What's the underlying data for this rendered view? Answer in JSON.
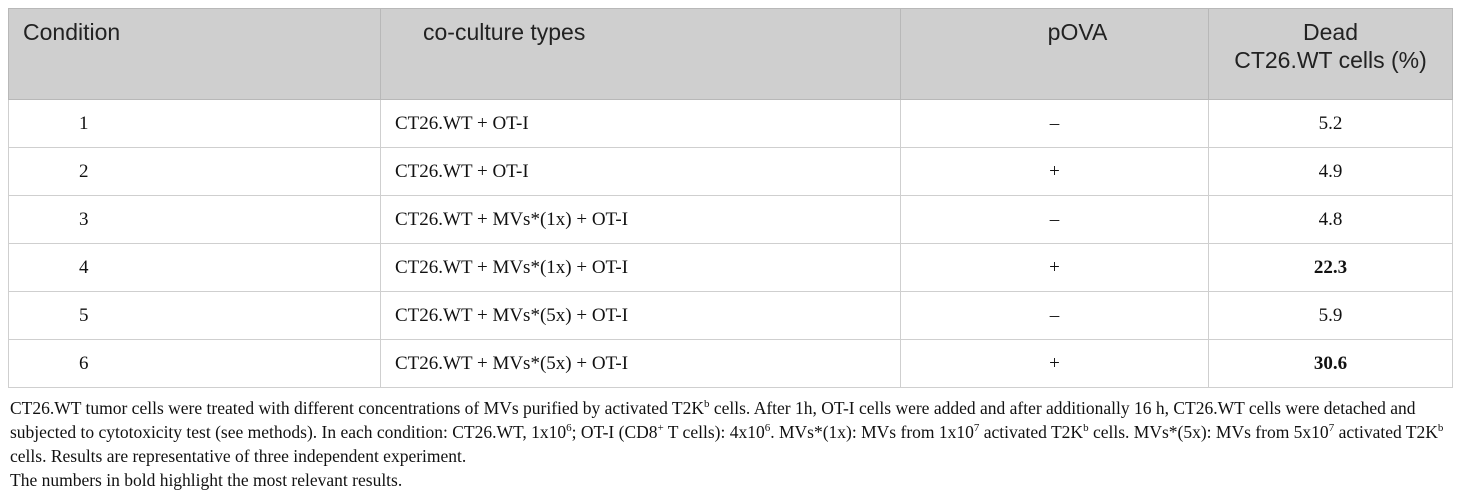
{
  "table": {
    "headers": {
      "condition": "Condition",
      "coculture": "co-culture types",
      "povaa": "pOVA",
      "dead_line1": "Dead",
      "dead_line2": "CT26.WT cells (%)"
    },
    "rows": [
      {
        "condition": "1",
        "type": "CT26.WT + OT-I",
        "pova": "–",
        "dead": "5.2",
        "bold": false
      },
      {
        "condition": "2",
        "type": "CT26.WT + OT-I",
        "pova": "+",
        "dead": "4.9",
        "bold": false
      },
      {
        "condition": "3",
        "type": "CT26.WT + MVs*(1x) + OT-I",
        "pova": "–",
        "dead": "4.8",
        "bold": false
      },
      {
        "condition": "4",
        "type": "CT26.WT + MVs*(1x) + OT-I",
        "pova": "+",
        "dead": "22.3",
        "bold": true
      },
      {
        "condition": "5",
        "type": "CT26.WT + MVs*(5x) + OT-I",
        "pova": "–",
        "dead": "5.9",
        "bold": false
      },
      {
        "condition": "6",
        "type": "CT26.WT + MVs*(5x) + OT-I",
        "pova": "+",
        "dead": "30.6",
        "bold": true
      }
    ]
  },
  "footnote": {
    "p1": [
      "CT26.WT tumor cells were treated with different concentrations of MVs purified by activated T2K",
      "b",
      " cells. After 1h, OT-I cells were added and after additionally 16 h, CT26.WT cells were detached and subjected to cytotoxicity test (see methods). In each condition: CT26.WT, 1x10",
      "6",
      "; OT-I (CD8",
      "+",
      " T cells): 4x10",
      "6",
      ". MVs*(1x): MVs from 1x10",
      "7",
      " activated T2K",
      "b",
      " cells. MVs*(5x): MVs from 5x10",
      "7",
      " activated T2K",
      "b",
      " cells. Results are representative of three independent experiment."
    ],
    "p2": "The numbers in bold highlight the most relevant results."
  }
}
